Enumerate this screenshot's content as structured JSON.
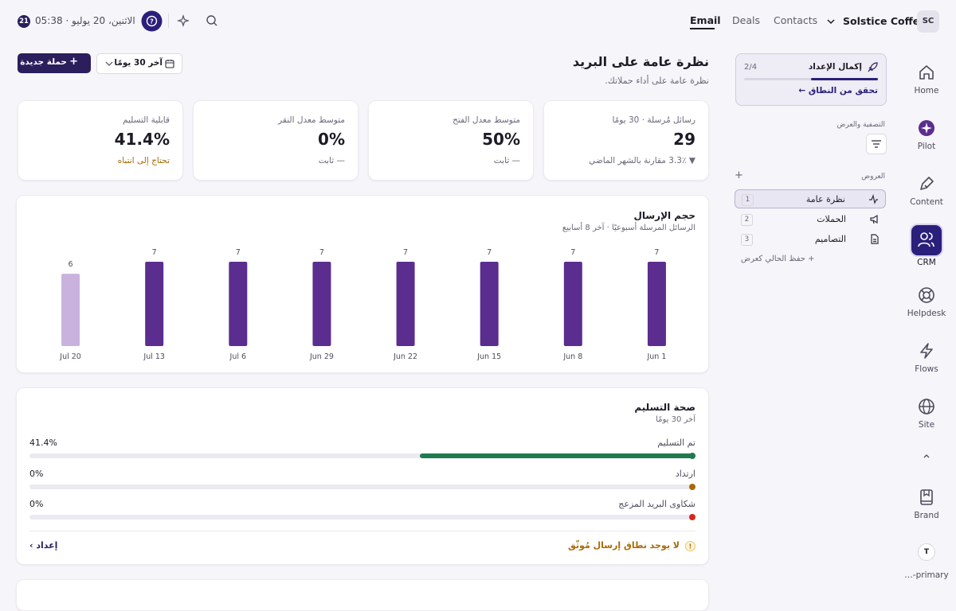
{
  "topbar": {
    "badge": "21",
    "datetime": "الاثنين، 20 يوليو · 05:38",
    "tabs": [
      "Email",
      "Deals",
      "Contacts"
    ],
    "workspace": "Solstice Coffee",
    "avatar": "SC"
  },
  "nav": [
    "Home",
    "Pilot",
    "Content",
    "CRM",
    "Helpdesk",
    "Flows",
    "Site",
    "Brand"
  ],
  "nav_user": {
    "initial": "T",
    "label": "…-primary"
  },
  "setup": {
    "title": "إكمال الإعداد",
    "progress": "2/4",
    "link": "تحقق من النطاق ←"
  },
  "filter_title": "التصفية والعرض",
  "views_title": "العروض",
  "views": [
    {
      "label": "نظرة عامة",
      "count": "1"
    },
    {
      "label": "الحملات",
      "count": "2"
    },
    {
      "label": "التصاميم",
      "count": "3"
    }
  ],
  "save_view": "+ حفظ الحالي كعرض",
  "header": {
    "title": "نظرة عامة على البريد",
    "subtitle": "نظرة عامة على أداء حملاتك.",
    "new_campaign": "حملة جديدة",
    "range": "آخر 30 يومًا"
  },
  "kpis": [
    {
      "label": "رسائل مُرسلة · 30 يومًا",
      "value": "29",
      "note": "▼ 3.3٪ مقارنة بالشهر الماضي"
    },
    {
      "label": "متوسط معدل الفتح",
      "value": "50%",
      "note": "— ثابت"
    },
    {
      "label": "متوسط معدل النقر",
      "value": "0%",
      "note": "— ثابت"
    },
    {
      "label": "قابلية التسليم",
      "value": "41.4%",
      "note": "تحتاج إلى انتباه"
    }
  ],
  "chart_data": {
    "type": "bar",
    "title": "حجم الإرسال",
    "subtitle": "الرسائل المرسلة أسبوعيًا · آخر 8 أسابيع",
    "categories": [
      "Jul 20",
      "Jul 13",
      "Jul 6",
      "Jun 29",
      "Jun 22",
      "Jun 15",
      "Jun 8",
      "Jun 1"
    ],
    "values": [
      6,
      7,
      7,
      7,
      7,
      7,
      7,
      7
    ],
    "colors": [
      "#c9b2dd",
      "#5b2d8e",
      "#5b2d8e",
      "#5b2d8e",
      "#5b2d8e",
      "#5b2d8e",
      "#5b2d8e",
      "#5b2d8e"
    ]
  },
  "deliverability": {
    "title": "صحة التسليم",
    "subtitle": "آخر 30 يومًا",
    "rows": [
      {
        "label": "تم التسليم",
        "value": 41.4,
        "value_label": "41.4%",
        "color": "#1f7a4d"
      },
      {
        "label": "ارتداد",
        "value": 0,
        "value_label": "0%",
        "color": "#a86a06"
      },
      {
        "label": "شكاوى البريد المزعج",
        "value": 0,
        "value_label": "0%",
        "color": "#d9261c"
      }
    ],
    "warning": "لا يوجد نطاق إرسال مُوثّق",
    "action": "إعداد ›"
  }
}
